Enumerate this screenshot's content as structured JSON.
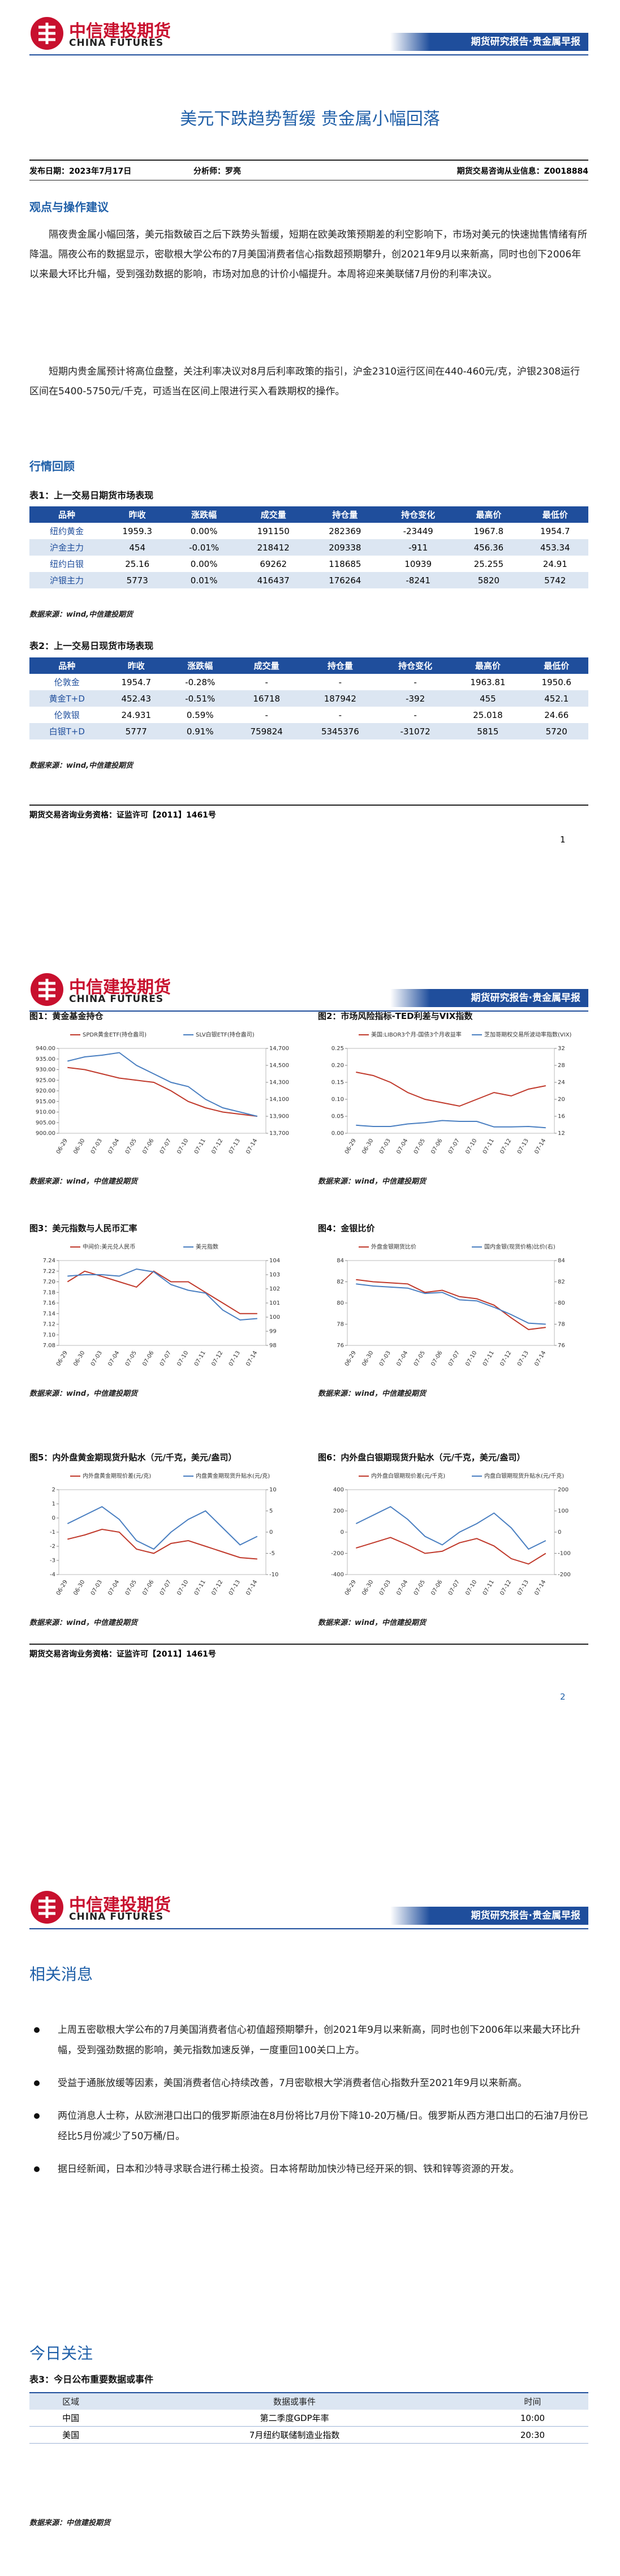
{
  "header": {
    "brand": "中信建投期货",
    "brand_en": "CHINA FUTURES",
    "report_type": "期货研究报告·贵金属早报"
  },
  "title": "美元下跌趋势暂缓 贵金属小幅回落",
  "info": {
    "date": "发布日期：2023年7月17日",
    "analyst": "分析师：罗亮",
    "license": "期货交易咨询从业信息：Z0018884"
  },
  "view": {
    "heading": "观点与操作建议",
    "paragraphs": [
      "隔夜贵金属小幅回落，美元指数破百之后下跌势头暂缓，短期在欧美政策预期差的利空影响下，市场对美元的快速抛售情绪有所降温。隔夜公布的数据显示，密歇根大学公布的7月美国消费者信心指数超预期攀升，创2021年9月以来新高，同时也创下2006年以来最大环比升幅，受到强劲数据的影响，市场对加息的计价小幅提升。本周将迎来美联储7月份的利率决议。",
      "短期内贵金属预计将高位盘整，关注利率决议对8月后利率政策的指引，沪金2310运行区间在440-460元/克，沪银2308运行区间在5400-5750元/千克，可适当在区间上限进行买入看跌期权的操作。"
    ]
  },
  "review": {
    "heading": "行情回顾"
  },
  "tables": [
    {
      "caption": "表1：上一交易日期货市场表现",
      "columns": [
        "品种",
        "昨收",
        "涨跌幅",
        "成交量",
        "持仓量",
        "持仓变化",
        "最高价",
        "最低价"
      ],
      "rows": [
        [
          "纽约黄金",
          "1959.3",
          "0.00%",
          "191150",
          "282369",
          "-23449",
          "1967.8",
          "1954.7"
        ],
        [
          "沪金主力",
          "454",
          "-0.01%",
          "218412",
          "209338",
          "-911",
          "456.36",
          "453.34"
        ],
        [
          "纽约白银",
          "25.16",
          "0.00%",
          "69262",
          "118685",
          "10939",
          "25.255",
          "24.91"
        ],
        [
          "沪银主力",
          "5773",
          "0.01%",
          "416437",
          "176264",
          "-8241",
          "5820",
          "5742"
        ]
      ],
      "source": "数据来源：wind,中信建投期货"
    },
    {
      "caption": "表2：上一交易日现货市场表现",
      "columns": [
        "品种",
        "昨收",
        "涨跌幅",
        "成交量",
        "持仓量",
        "持仓变化",
        "最高价",
        "最低价"
      ],
      "rows": [
        [
          "伦敦金",
          "1954.7",
          "-0.28%",
          "-",
          "-",
          "-",
          "1963.81",
          "1950.6"
        ],
        [
          "黄金T+D",
          "452.43",
          "-0.51%",
          "16718",
          "187942",
          "-392",
          "455",
          "452.1"
        ],
        [
          "伦敦银",
          "24.931",
          "0.59%",
          "-",
          "-",
          "-",
          "25.018",
          "24.66"
        ],
        [
          "白银T+D",
          "5777",
          "0.91%",
          "759824",
          "5345376",
          "-31072",
          "5815",
          "5720"
        ]
      ],
      "source": "数据来源：wind,中信建投期货"
    },
    {
      "caption": "表3：今日公布重要数据或事件",
      "columns": [
        "区域",
        "数据或事件",
        "时间"
      ],
      "rows": [
        [
          "中国",
          "第二季度GDP年率",
          "10:00"
        ],
        [
          "美国",
          "7月纽约联储制造业指数",
          "20:30"
        ]
      ],
      "source": "数据来源：中信建投期货"
    }
  ],
  "footer": "期货交易咨询业务资格：证监许可【2011】1461号",
  "page_numbers": [
    "1",
    "2"
  ],
  "charts": [
    {
      "type": "line",
      "title": "图1：黄金基金持仓",
      "source": "数据来源：wind，中信建投期货",
      "categories": [
        "06-29",
        "06-30",
        "07-03",
        "07-04",
        "07-05",
        "07-06",
        "07-07",
        "07-10",
        "07-11",
        "07-12",
        "07-13",
        "07-14"
      ],
      "series": [
        {
          "name": "SPDR黄金ETF(持仓盎司)",
          "color": "#c0392b",
          "axis": "y",
          "values": [
            931,
            930,
            928,
            926,
            925,
            924,
            920,
            915,
            912,
            910,
            909,
            908
          ]
        },
        {
          "name": "SLV白银ETF(持仓盎司)",
          "color": "#4a7fc1",
          "axis": "y2",
          "values": [
            14550,
            14600,
            14620,
            14650,
            14500,
            14400,
            14300,
            14250,
            14100,
            14000,
            13950,
            13900
          ]
        }
      ],
      "ylim": [
        900,
        940
      ],
      "yticks": [
        {
          "value": 900,
          "label": "900.00"
        },
        {
          "value": 905,
          "label": "905.00"
        },
        {
          "value": 910,
          "label": "910.00"
        },
        {
          "value": 915,
          "label": "915.00"
        },
        {
          "value": 920,
          "label": "920.00"
        },
        {
          "value": 925,
          "label": "925.00"
        },
        {
          "value": 930,
          "label": "930.00"
        },
        {
          "value": 935,
          "label": "935.00"
        },
        {
          "value": 940,
          "label": "940.00"
        }
      ],
      "y2lim": [
        13700,
        14700
      ],
      "y2ticks": [
        {
          "value": 13700,
          "label": "13,700"
        },
        {
          "value": 13900,
          "label": "13,900"
        },
        {
          "value": 14100,
          "label": "14,100"
        },
        {
          "value": 14300,
          "label": "14,300"
        },
        {
          "value": 14500,
          "label": "14,500"
        },
        {
          "value": 14700,
          "label": "14,700"
        }
      ]
    },
    {
      "type": "line",
      "title": "图2：市场风险指标-TED利差与VIX指数",
      "source": "数据来源：wind，中信建投期货",
      "categories": [
        "06-29",
        "06-30",
        "07-03",
        "07-04",
        "07-05",
        "07-06",
        "07-07",
        "07-10",
        "07-11",
        "07-12",
        "07-13",
        "07-14"
      ],
      "series": [
        {
          "name": "美国:LIBOR3个月-国债3个月收益率",
          "color": "#c0392b",
          "axis": "y",
          "values": [
            0.18,
            0.17,
            0.15,
            0.12,
            0.1,
            0.09,
            0.08,
            0.1,
            0.12,
            0.11,
            0.13,
            0.14
          ]
        },
        {
          "name": "芝加哥期权交易所波动率指数(VIX)",
          "color": "#4a7fc1",
          "axis": "y2",
          "values": [
            13.9,
            13.6,
            13.6,
            14.2,
            14.5,
            15,
            14.8,
            14.8,
            13.5,
            13.5,
            13.6,
            13.3
          ]
        }
      ],
      "ylim": [
        0,
        0.25
      ],
      "yticks": [
        {
          "value": 0,
          "label": "0.00"
        },
        0.05,
        {
          "value": 0.1,
          "label": "0.10"
        },
        0.15,
        {
          "value": 0.2,
          "label": "0.20"
        },
        0.25
      ],
      "y2lim": [
        12,
        32
      ],
      "y2ticks": [
        12,
        16,
        20,
        24,
        28,
        32
      ]
    },
    {
      "type": "line",
      "title": "图3：美元指数与人民币汇率",
      "source": "数据来源：wind，中信建投期货",
      "categories": [
        "06-29",
        "06-30",
        "07-03",
        "07-04",
        "07-05",
        "07-06",
        "07-07",
        "07-10",
        "07-11",
        "07-12",
        "07-13",
        "07-14"
      ],
      "series": [
        {
          "name": "中间价:美元兑人民币",
          "color": "#c0392b",
          "axis": "y",
          "values": [
            7.2,
            7.22,
            7.21,
            7.2,
            7.19,
            7.22,
            7.2,
            7.2,
            7.18,
            7.16,
            7.14,
            7.14
          ]
        },
        {
          "name": "美元指数",
          "color": "#4a7fc1",
          "axis": "y2",
          "values": [
            102.9,
            103,
            103,
            102.9,
            103.4,
            103.2,
            102.3,
            101.9,
            101.7,
            100.5,
            99.8,
            99.9
          ]
        }
      ],
      "ylim": [
        7.08,
        7.24
      ],
      "yticks": [
        7.08,
        {
          "value": 7.1,
          "label": "7.10"
        },
        7.12,
        7.14,
        7.16,
        7.18,
        {
          "value": 7.2,
          "label": "7.20"
        },
        7.22,
        7.24
      ],
      "y2lim": [
        98,
        104
      ],
      "y2ticks": [
        98,
        99,
        100,
        101,
        102,
        103,
        104
      ]
    },
    {
      "type": "line",
      "title": "图4：金银比价",
      "source": "数据来源：wind，中信建投期货",
      "categories": [
        "06-29",
        "06-30",
        "07-03",
        "07-04",
        "07-05",
        "07-06",
        "07-07",
        "07-10",
        "07-11",
        "07-12",
        "07-13",
        "07-14"
      ],
      "series": [
        {
          "name": "外盘金银期货比价",
          "color": "#c0392b",
          "axis": "y",
          "values": [
            82.2,
            82,
            81.9,
            81.8,
            81,
            81.2,
            80.6,
            80.4,
            79.8,
            78.6,
            77.5,
            77.7
          ]
        },
        {
          "name": "国内金银(现货价格)比价(右)",
          "color": "#4a7fc1",
          "axis": "y2",
          "values": [
            81.8,
            81.6,
            81.5,
            81.4,
            80.9,
            81,
            80.3,
            80.2,
            79.6,
            78.9,
            78.1,
            78
          ]
        }
      ],
      "ylim": [
        76,
        84
      ],
      "yticks": [
        76,
        78,
        80,
        82,
        84
      ],
      "y2lim": [
        76,
        84
      ],
      "y2ticks": [
        76,
        78,
        80,
        82,
        84
      ]
    },
    {
      "type": "line",
      "title": "图5：内外盘黄金期现货升贴水（元/千克，美元/盎司）",
      "source": "数据来源：wind，中信建投期货",
      "categories": [
        "06-29",
        "06-30",
        "07-03",
        "07-04",
        "07-05",
        "07-06",
        "07-07",
        "07-10",
        "07-11",
        "07-12",
        "07-13",
        "07-14"
      ],
      "series": [
        {
          "name": "内外盘黄金期现价差(元/克)",
          "color": "#c0392b",
          "axis": "y",
          "values": [
            -1.5,
            -1.2,
            -0.8,
            -1,
            -2.2,
            -2.5,
            -1.8,
            -1.6,
            -2,
            -2.4,
            -2.8,
            -2.9
          ]
        },
        {
          "name": "内盘黄金期现货升贴水(元/克)",
          "color": "#4a7fc1",
          "axis": "y2",
          "values": [
            2,
            4,
            6,
            3,
            -2,
            -4,
            0,
            3,
            5,
            1,
            -3,
            -1
          ]
        }
      ],
      "ylim": [
        -4,
        2
      ],
      "yticks": [
        -4,
        -3,
        -2,
        -1,
        0,
        1,
        2
      ],
      "y2lim": [
        -10,
        10
      ],
      "y2ticks": [
        -10,
        -5,
        0,
        5,
        10
      ]
    },
    {
      "type": "line",
      "title": "图6：内外盘白银期现货升贴水（元/千克，美元/盎司）",
      "source": "数据来源：wind，中信建投期货",
      "categories": [
        "06-29",
        "06-30",
        "07-03",
        "07-04",
        "07-05",
        "07-06",
        "07-07",
        "07-10",
        "07-11",
        "07-12",
        "07-13",
        "07-14"
      ],
      "series": [
        {
          "name": "内外盘白银期现价差(元/千克)",
          "color": "#c0392b",
          "axis": "y",
          "values": [
            -150,
            -100,
            -50,
            -120,
            -200,
            -180,
            -100,
            -60,
            -130,
            -250,
            -300,
            -200
          ]
        },
        {
          "name": "内盘白银期现货升贴水(元/千克)",
          "color": "#4a7fc1",
          "axis": "y2",
          "values": [
            40,
            80,
            120,
            60,
            -20,
            -60,
            0,
            40,
            90,
            20,
            -80,
            -40
          ]
        }
      ],
      "ylim": [
        -400,
        400
      ],
      "yticks": [
        -400,
        -200,
        0,
        200,
        400
      ],
      "y2lim": [
        -200,
        200
      ],
      "y2ticks": [
        -200,
        -100,
        0,
        100,
        200
      ]
    }
  ],
  "news": {
    "heading": "相关消息",
    "items": [
      "上周五密歇根大学公布的7月美国消费者信心初值超预期攀升，创2021年9月以来新高，同时也创下2006年以来最大环比升幅，受到强劲数据的影响，美元指数加速反弹，一度重回100关口上方。",
      "受益于通胀放缓等因素，美国消费者信心持续改善，7月密歇根大学消费者信心指数升至2021年9月以来新高。",
      "两位消息人士称，从欧洲港口出口的俄罗斯原油在8月份将比7月份下降10-20万桶/日。俄罗斯从西方港口出口的石油7月份已经比5月份减少了50万桶/日。",
      "据日经新闻，日本和沙特寻求联合进行稀土投资。日本将帮助加快沙特已经开采的铜、铁和锌等资源的开发。"
    ]
  },
  "today": {
    "heading": "今日关注"
  }
}
